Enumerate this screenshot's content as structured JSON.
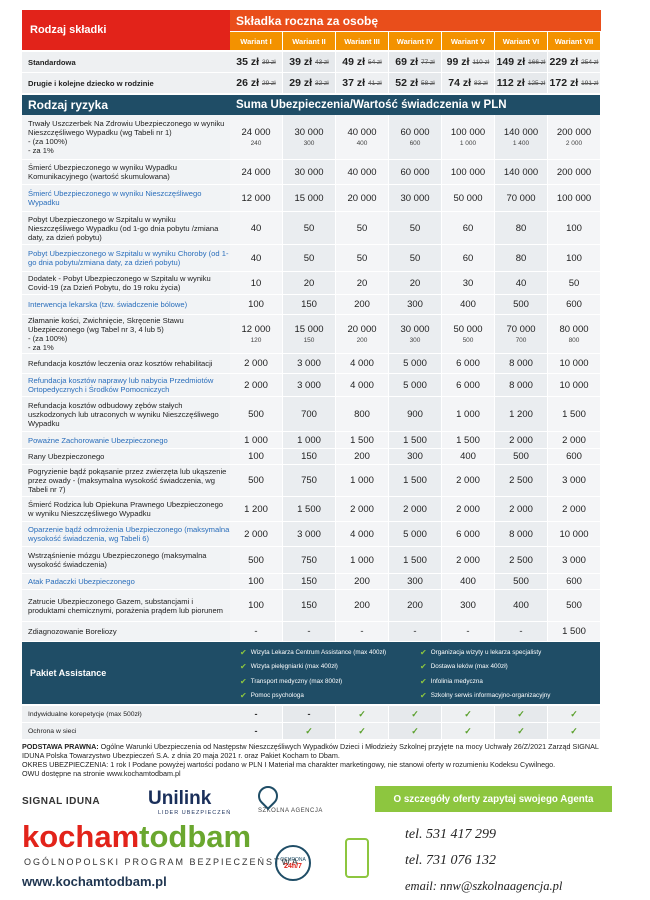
{
  "header": {
    "title": "Rodzaj składki",
    "premium_title": "Składka roczna za osobę",
    "variants": [
      "Wariant I",
      "Wariant II",
      "Wariant III",
      "Wariant IV",
      "Wariant V",
      "Wariant VI",
      "Wariant VII"
    ]
  },
  "premiums": [
    {
      "label": "Standardowa",
      "prices": [
        "35 zł",
        "39 zł",
        "49 zł",
        "69 zł",
        "99 zł",
        "149 zł",
        "229 zł"
      ],
      "old_prices": [
        "39 zł",
        "43 zł",
        "54 zł",
        "77 zł",
        "110 zł",
        "166 zł",
        "254 zł"
      ]
    },
    {
      "label": "Drugie i kolejne dziecko w rodzinie",
      "prices": [
        "26 zł",
        "29 zł",
        "37 zł",
        "52 zł",
        "74 zł",
        "112 zł",
        "172 zł"
      ],
      "old_prices": [
        "29 zł",
        "32 zł",
        "41 zł",
        "58 zł",
        "83 zł",
        "125 zł",
        "191 zł"
      ]
    }
  ],
  "risks_header": {
    "title": "Rodzaj ryzyka",
    "values_title": "Suma Ubezpieczenia/Wartość świadczenia w PLN"
  },
  "risks": [
    {
      "label": "Trwały Uszczerbek Na Zdrowiu Ubezpieczonego w wyniku Nieszczęśliwego Wypadku (wg Tabeli nr 1)",
      "sub_labels": [
        "- (za 100%)",
        "- za 1%"
      ],
      "values": [
        "24 000",
        "30 000",
        "40 000",
        "60 000",
        "100 000",
        "140 000",
        "200 000"
      ],
      "sub_values": [
        "240",
        "300",
        "400",
        "600",
        "1 000",
        "1 400",
        "2 000"
      ]
    },
    {
      "label": "Śmierć Ubezpieczonego w wyniku Wypadku Komunikacyjnego (wartość skumulowana)",
      "values": [
        "24 000",
        "30 000",
        "40 000",
        "60 000",
        "100 000",
        "140 000",
        "200 000"
      ]
    },
    {
      "label": "Śmierć Ubezpieczonego w wyniku Nieszczęśliwego Wypadku",
      "color": "#2a6ebb",
      "values": [
        "12 000",
        "15 000",
        "20 000",
        "30 000",
        "50 000",
        "70 000",
        "100 000"
      ]
    },
    {
      "label": "Pobyt Ubezpieczonego w Szpitalu w wyniku Nieszczęśliwego Wypadku (od 1-go dnia pobytu /zmiana daty, za dzień pobytu)",
      "values": [
        "40",
        "50",
        "50",
        "50",
        "60",
        "80",
        "100"
      ]
    },
    {
      "label": "Pobyt Ubezpieczonego w Szpitalu w wyniku Choroby (od 1-go dnia pobytu/zmiana daty, za dzień pobytu)",
      "color": "#2a6ebb",
      "values": [
        "40",
        "50",
        "50",
        "50",
        "60",
        "80",
        "100"
      ]
    },
    {
      "label": "Dodatek - Pobyt Ubezpieczonego w Szpitalu w wyniku Covid-19 (za Dzień Pobytu, do 19 roku życia)",
      "values": [
        "10",
        "20",
        "20",
        "20",
        "30",
        "40",
        "50"
      ]
    },
    {
      "label": "Interwencja lekarska (tzw. świadczenie bólowe)",
      "color": "#2a6ebb",
      "values": [
        "100",
        "150",
        "200",
        "300",
        "400",
        "500",
        "600"
      ]
    },
    {
      "label": "Złamanie kości, Zwichnięcie, Skręcenie Stawu Ubezpieczonego (wg Tabel nr 3, 4 lub 5)",
      "sub_labels": [
        "- (za 100%)",
        "- za 1%"
      ],
      "values": [
        "12 000",
        "15 000",
        "20 000",
        "30 000",
        "50 000",
        "70 000",
        "80 000"
      ],
      "sub_values": [
        "120",
        "150",
        "200",
        "300",
        "500",
        "700",
        "800"
      ]
    },
    {
      "label": "Refundacja kosztów leczenia oraz kosztów rehabilitacji",
      "values": [
        "2 000",
        "3 000",
        "4 000",
        "5 000",
        "6 000",
        "8 000",
        "10 000"
      ]
    },
    {
      "label": "Refundacja kosztów naprawy lub nabycia Przedmiotów Ortopedycznych i Środków Pomocniczych",
      "color": "#2a6ebb",
      "values": [
        "2 000",
        "3 000",
        "4 000",
        "5 000",
        "6 000",
        "8 000",
        "10 000"
      ]
    },
    {
      "label": "Refundacja kosztów odbudowy zębów stałych uszkodzonych lub utraconych w wyniku Nieszczęśliwego Wypadku",
      "values": [
        "500",
        "700",
        "800",
        "900",
        "1 000",
        "1 200",
        "1 500"
      ]
    },
    {
      "label": "Poważne Zachorowanie Ubezpieczonego",
      "color": "#2a6ebb",
      "values": [
        "1 000",
        "1 000",
        "1 500",
        "1 500",
        "1 500",
        "2 000",
        "2 000"
      ]
    },
    {
      "label": "Rany Ubezpieczonego",
      "values": [
        "100",
        "150",
        "200",
        "300",
        "400",
        "500",
        "600"
      ]
    },
    {
      "label": "Pogryzienie bądź pokąsanie przez zwierzęta lub ukąszenie przez owady - (maksymalna wysokość świadczenia, wg Tabeli nr 7)",
      "values": [
        "500",
        "750",
        "1 000",
        "1 500",
        "2 000",
        "2 500",
        "3 000"
      ]
    },
    {
      "label": "Śmierć Rodzica lub Opiekuna Prawnego Ubezpieczonego w wyniku Nieszczęśliwego Wypadku",
      "values": [
        "1 200",
        "1 500",
        "2 000",
        "2 000",
        "2 000",
        "2 000",
        "2 000"
      ]
    },
    {
      "label": "Oparzenie bądź odmrożenia Ubezpieczonego (maksymalna wysokość świadczenia, wg Tabeli 6)",
      "color": "#2a6ebb",
      "values": [
        "2 000",
        "3 000",
        "4 000",
        "5 000",
        "6 000",
        "8 000",
        "10 000"
      ]
    },
    {
      "label": "Wstrząśnienie mózgu Ubezpieczonego (maksymalna wysokość świadczenia)",
      "values": [
        "500",
        "750",
        "1 000",
        "1 500",
        "2 000",
        "2 500",
        "3 000"
      ]
    },
    {
      "label": "Atak Padaczki Ubezpieczonego",
      "color": "#2a6ebb",
      "values": [
        "100",
        "150",
        "200",
        "300",
        "400",
        "500",
        "600"
      ]
    },
    {
      "label": "Zatrucie Ubezpieczonego Gazem, substancjami i produktami chemicznymi, porażenia prądem lub piorunem",
      "values": [
        "100",
        "150",
        "200",
        "200",
        "300",
        "400",
        "500"
      ]
    },
    {
      "label": "Zdiagnozowanie Boreliozy",
      "values": [
        "-",
        "-",
        "-",
        "-",
        "-",
        "-",
        "1 500"
      ]
    }
  ],
  "assistance": {
    "title": "Pakiet Assistance",
    "items": [
      "Wizyta Lekarza Centrum Assistance (max 400zł)",
      "Wizyta pielęgniarki (max 400zł)",
      "Transport medyczny (max 800zł)",
      "Pomoc psychologa",
      "Organizacja wizyty u lekarza specjalisty",
      "Dostawa leków (max 400zł)",
      "Infolinia medyczna",
      "Szkolny serwis informacyjno-organizacyjny"
    ]
  },
  "extras": [
    {
      "label": "Indywidualne korepetycje (max 500zł)",
      "values": [
        "-",
        "-",
        "✓",
        "✓",
        "✓",
        "✓",
        "✓"
      ]
    },
    {
      "label": "Ochrona w sieci",
      "values": [
        "-",
        "✓",
        "✓",
        "✓",
        "✓",
        "✓",
        "✓"
      ]
    }
  ],
  "footer": {
    "legal_title": "PODSTAWA PRAWNA:",
    "legal_text": "Ogólne Warunki Ubezpieczenia od Następstw Nieszczęśliwych Wypadków Dzieci i Młodzieży Szkolnej przyjęte na mocy Uchwały 26/Z/2021 Zarząd SIGNAL IDUNA Polska Towarzystwo Ubezpieczeń S.A. z dnia 20 maja 2021 r. oraz Pakiet Kocham to Dbam.",
    "period": "OKRES UBEZPIECZENIA: 1 rok I Podane powyżej wartości podano w PLN I Materiał ma charakter marketingowy, nie stanowi oferty w rozumieniu Kodeksu Cywilnego.",
    "owu": "OWU dostępne na stronie www.kochamtodbam.pl",
    "logo1": "SIGNAL IDUNA",
    "logo2": "Unilink",
    "logo2_sub": "LIDER UBEZPIECZEŃ",
    "logo3": "SZKOLNA AGENCJA",
    "cta": "O szczegóły oferty zapytaj swojego Agenta",
    "brand_a": "kocham",
    "brand_b": "todbam",
    "brand_sub": "OGÓLNOPOLSKI PROGRAM BEZPIECZEŃSTWA",
    "website": "www.kochamtodbam.pl",
    "badge_top": "OCHRONA",
    "badge_bottom": "24h/7",
    "phone1": "tel. 531 417 299",
    "phone2": "tel. 731 076 132",
    "email": "email: nnw@szkolnaagencja.pl"
  }
}
